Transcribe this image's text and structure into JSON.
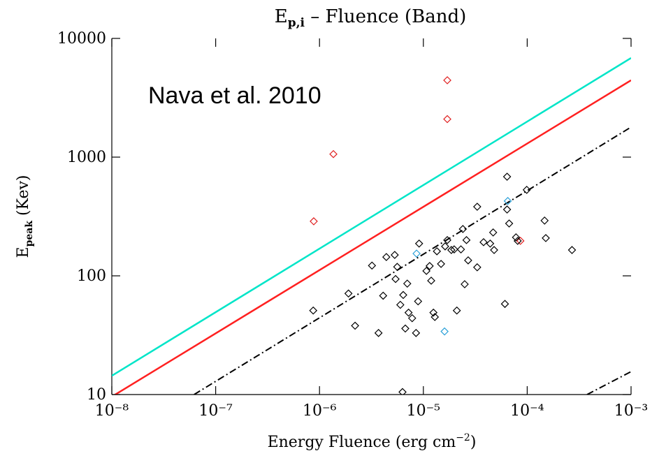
{
  "chart_data": {
    "type": "scatter",
    "title": [
      "E",
      "p,i",
      "  –  Fluence (Band)"
    ],
    "xlabel": [
      "Energy Fluence (erg cm",
      "−2",
      ")"
    ],
    "ylabel": [
      "E",
      "peak",
      "  (Kev)"
    ],
    "annotation": "Nava et al. 2010",
    "xlog": true,
    "ylog": true,
    "xlim": [
      1e-08,
      0.001
    ],
    "ylim": [
      10,
      10000
    ],
    "xticks": [
      {
        "value": 1e-08,
        "label": "10⁻⁸"
      },
      {
        "value": 1e-07,
        "label": "10⁻⁷"
      },
      {
        "value": 1e-06,
        "label": "10⁻⁶"
      },
      {
        "value": 1e-05,
        "label": "10⁻⁵"
      },
      {
        "value": 0.0001,
        "label": "10⁻⁴"
      },
      {
        "value": 0.001,
        "label": "10⁻³"
      }
    ],
    "yticks": [
      10,
      100,
      1000,
      10000
    ],
    "lines": [
      {
        "color": "#00e5c8",
        "dash": "solid",
        "x": [
          1e-08,
          0.001
        ],
        "values": [
          14.4,
          6840
        ]
      },
      {
        "color": "#ff2020",
        "dash": "solid",
        "x": [
          1e-08,
          0.001
        ],
        "values": [
          9.6,
          4440
        ]
      },
      {
        "color": "#000000",
        "dash": "dashdot",
        "x": [
          6.2e-08,
          0.001
        ],
        "values": [
          10,
          1790
        ]
      },
      {
        "color": "#000000",
        "dash": "dashdot",
        "x": [
          0.000377,
          0.001
        ],
        "values": [
          10,
          15.6
        ]
      }
    ],
    "points": [
      {
        "color": "#e02020",
        "x": [
          8.8e-07,
          1.36e-06,
          1.7e-05,
          1.7e-05,
          8.6e-05
        ],
        "values": [
          288,
          1060,
          4440,
          2090,
          197
        ]
      },
      {
        "color": "#2aa0d8",
        "x": [
          8.6e-06,
          1.6e-05,
          6.5e-05
        ],
        "values": [
          154,
          34,
          427
        ]
      },
      {
        "color": "#000000",
        "x": [
          8.7e-07,
          2.2e-06,
          1.9e-06,
          3.2e-06,
          3.7e-06,
          4.1e-06,
          5.3e-06,
          5.6e-06,
          5.4e-06,
          6e-06,
          6.4e-06,
          7e-06,
          6.7e-06,
          7.2e-06,
          7.8e-06,
          8.5e-06,
          8.9e-06,
          9.1e-06,
          1.07e-05,
          1.15e-05,
          1.19e-05,
          1.25e-05,
          1.29e-05,
          1.35e-05,
          1.48e-05,
          1.62e-05,
          1.7e-05,
          1.86e-05,
          1.98e-05,
          2.1e-05,
          2.3e-05,
          2.4e-05,
          2.5e-05,
          2.6e-05,
          2.7e-05,
          3.3e-05,
          3.3e-05,
          3.8e-05,
          4.4e-05,
          4.7e-05,
          4.8e-05,
          6.1e-05,
          6.4e-05,
          6.4e-05,
          6.7e-05,
          7.8e-05,
          8.1e-05,
          9.9e-05,
          0.000147,
          0.000151,
          0.00027,
          6.3e-06,
          4.4e-06
        ],
        "values": [
          51,
          38,
          71,
          122,
          33,
          68,
          150,
          119,
          94,
          57,
          69,
          86,
          36,
          49,
          44,
          33,
          61,
          187,
          110,
          121,
          91,
          49,
          45,
          161,
          126,
          177,
          200,
          165,
          167,
          51,
          167,
          248,
          85,
          200,
          135,
          382,
          118,
          192,
          187,
          232,
          165,
          58,
          684,
          362,
          276,
          211,
          197,
          530,
          292,
          208,
          165,
          10.5,
          144
        ]
      }
    ]
  }
}
